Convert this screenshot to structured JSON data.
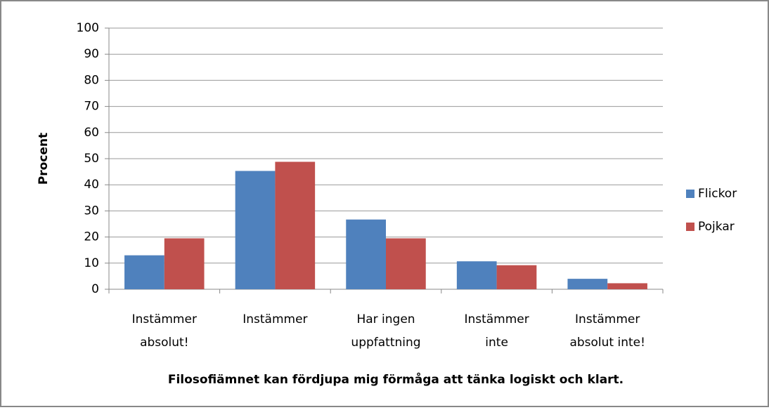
{
  "chart_data": {
    "type": "bar",
    "title": "Filosofiämnet kan fördjupa mig förmåga att tänka logiskt och klart.",
    "y_label": "Procent",
    "categories": [
      [
        "Instämmer",
        "absolut!"
      ],
      [
        "Instämmer"
      ],
      [
        "Har ingen",
        "uppfattning"
      ],
      [
        "Instämmer",
        "inte"
      ],
      [
        "Instämmer",
        "absolut inte!"
      ]
    ],
    "series": [
      {
        "name": "Flickor",
        "color": "#4f81bd",
        "values": [
          13,
          45.3,
          26.7,
          10.7,
          4
        ]
      },
      {
        "name": "Pojkar",
        "color": "#c0504d",
        "values": [
          19.5,
          48.8,
          19.5,
          9.2,
          2.3
        ]
      }
    ],
    "ylim": [
      0,
      100
    ],
    "yticks": [
      0,
      10,
      20,
      30,
      40,
      50,
      60,
      70,
      80,
      90,
      100
    ],
    "grid": true,
    "legend": "right"
  }
}
